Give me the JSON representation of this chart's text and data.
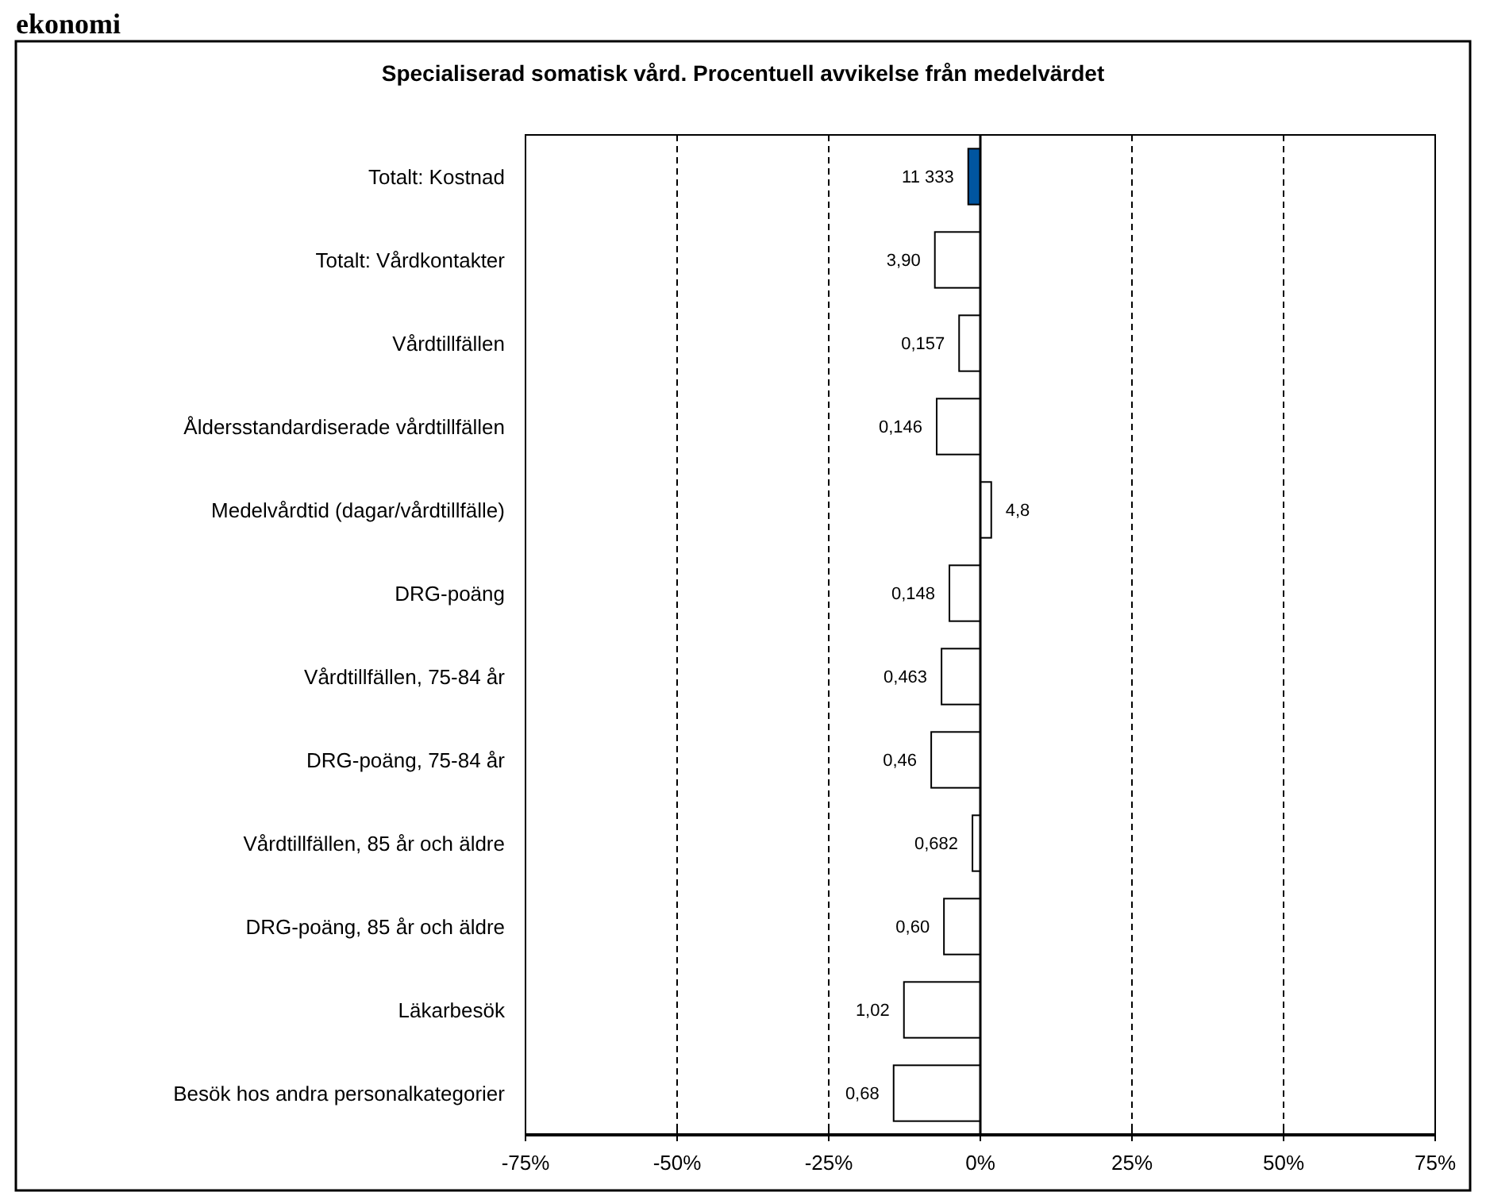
{
  "chart_data": {
    "type": "bar",
    "orientation": "horizontal",
    "title": "Specialiserad somatisk vård. Procentuell avvikelse från medelvärdet",
    "annotations": [
      "ekonomi",
      {
        "text": "11 333",
        "x": -2.0,
        "y": "Totalt: Kostnad"
      },
      {
        "text": "3,90",
        "x": -7.5,
        "y": "Totalt: Vårdkontakter"
      },
      {
        "text": "0,157",
        "x": -3.5,
        "y": "Vårdtillfällen"
      },
      {
        "text": "0,146",
        "x": -7.2,
        "y": "Åldersstandardiserade vårdtillfällen"
      },
      {
        "text": "4,8",
        "x": 1.8,
        "y": "Medelvårdtid (dagar/vårdtillfälle)"
      },
      {
        "text": "0,148",
        "x": -5.1,
        "y": "DRG-poäng"
      },
      {
        "text": "0,463",
        "x": -6.4,
        "y": "Vårdtillfällen, 75-84 år"
      },
      {
        "text": "0,46",
        "x": -8.1,
        "y": "DRG-poäng, 75-84 år"
      },
      {
        "text": "0,682",
        "x": -1.3,
        "y": "Vårdtillfällen, 85 år och äldre"
      },
      {
        "text": "0,60",
        "x": -6.0,
        "y": "DRG-poäng, 85 år och äldre"
      },
      {
        "text": "1,02",
        "x": -12.6,
        "y": "Läkarbesök"
      },
      {
        "text": "0,68",
        "x": -14.3,
        "y": "Besök hos andra personalkategorier"
      }
    ],
    "categories": [
      "Totalt: Kostnad",
      "Totalt: Vårdkontakter",
      "Vårdtillfällen",
      "Åldersstandardiserade vårdtillfällen",
      "Medelvårdtid (dagar/vårdtillfälle)",
      "DRG-poäng",
      "Vårdtillfällen, 75-84 år",
      "DRG-poäng, 75-84 år",
      "Vårdtillfällen, 85 år och äldre",
      "DRG-poäng, 85 år och äldre",
      "Läkarbesök",
      "Besök hos andra personalkategorier"
    ],
    "values": [
      -2.0,
      -7.5,
      -3.5,
      -7.2,
      1.8,
      -5.1,
      -6.4,
      -8.1,
      -1.3,
      -6.0,
      -12.6,
      -14.3
    ],
    "colors": [
      "#0055a0",
      "#ffffff",
      "#ffffff",
      "#ffffff",
      "#ffffff",
      "#ffffff",
      "#ffffff",
      "#ffffff",
      "#ffffff",
      "#ffffff",
      "#ffffff",
      "#ffffff"
    ],
    "xlim": [
      -75,
      75
    ],
    "xticks": [
      {
        "value": -75,
        "label": "-75%"
      },
      {
        "value": -50,
        "label": "-50%"
      },
      {
        "value": -25,
        "label": "-25%"
      },
      {
        "value": 0,
        "label": "0%"
      },
      {
        "value": 25,
        "label": "25%"
      },
      {
        "value": 50,
        "label": "50%"
      },
      {
        "value": 75,
        "label": "75%"
      }
    ],
    "grid": "x",
    "line_style": "dashed"
  }
}
